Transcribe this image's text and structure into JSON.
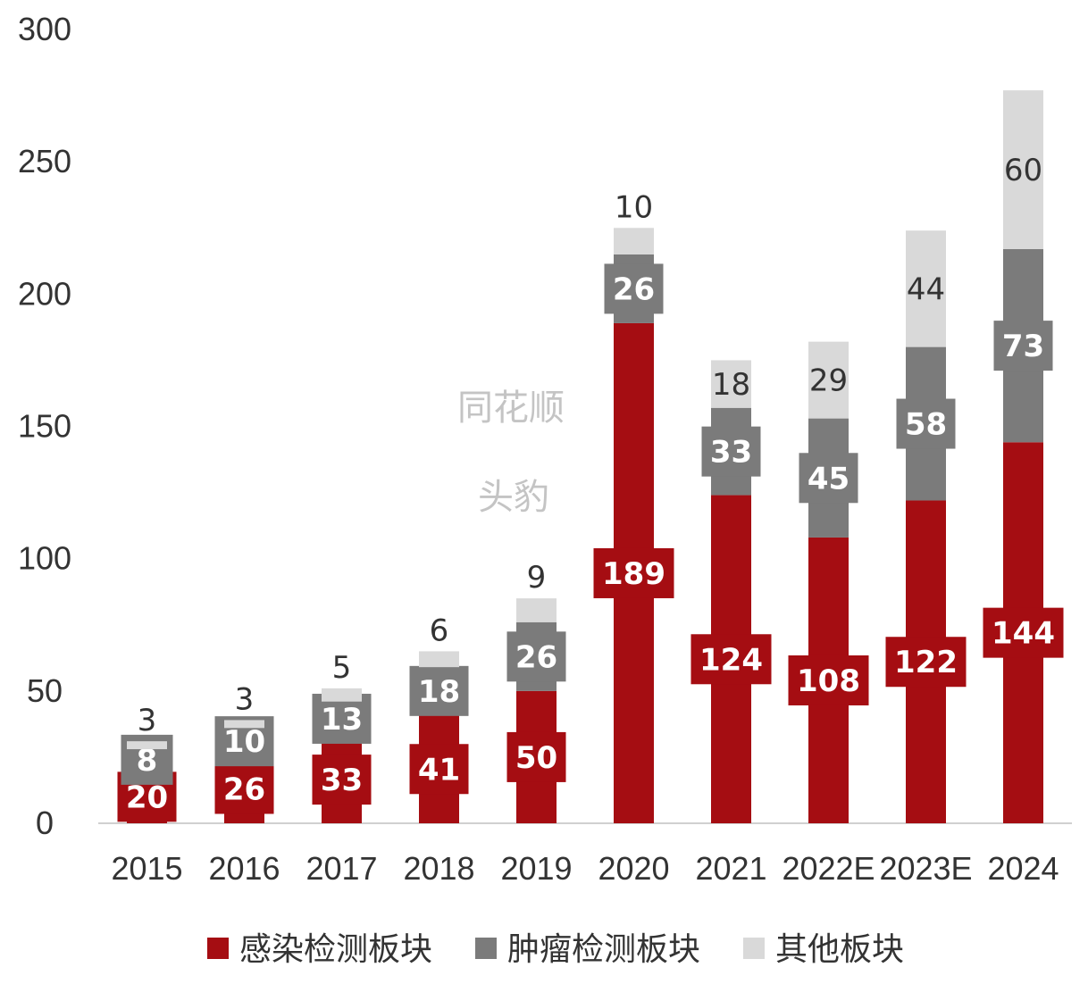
{
  "chart_data": {
    "type": "bar",
    "stacked": true,
    "categories": [
      "2015",
      "2016",
      "2017",
      "2018",
      "2019",
      "2020",
      "2021",
      "2022E",
      "2023E",
      "2024"
    ],
    "series": [
      {
        "name": "感染检测板块",
        "color": "#a50d12",
        "label_color": "#ffffff",
        "values": [
          20,
          26,
          33,
          41,
          50,
          189,
          124,
          108,
          122,
          144
        ]
      },
      {
        "name": "肿瘤检测板块",
        "color": "#7b7b7b",
        "label_color": "#ffffff",
        "values": [
          8,
          10,
          13,
          18,
          26,
          26,
          33,
          45,
          58,
          73
        ]
      },
      {
        "name": "其他板块",
        "color": "#d9d9d9",
        "label_color": "#333333",
        "values": [
          3,
          3,
          5,
          6,
          9,
          10,
          18,
          29,
          44,
          60
        ]
      }
    ],
    "ylim": [
      0,
      300
    ],
    "yticks": [
      0,
      50,
      100,
      150,
      200,
      250,
      300
    ],
    "legend_position": "bottom",
    "grid": false
  },
  "watermark": {
    "line1": "同花顺",
    "line2": "头豹"
  }
}
